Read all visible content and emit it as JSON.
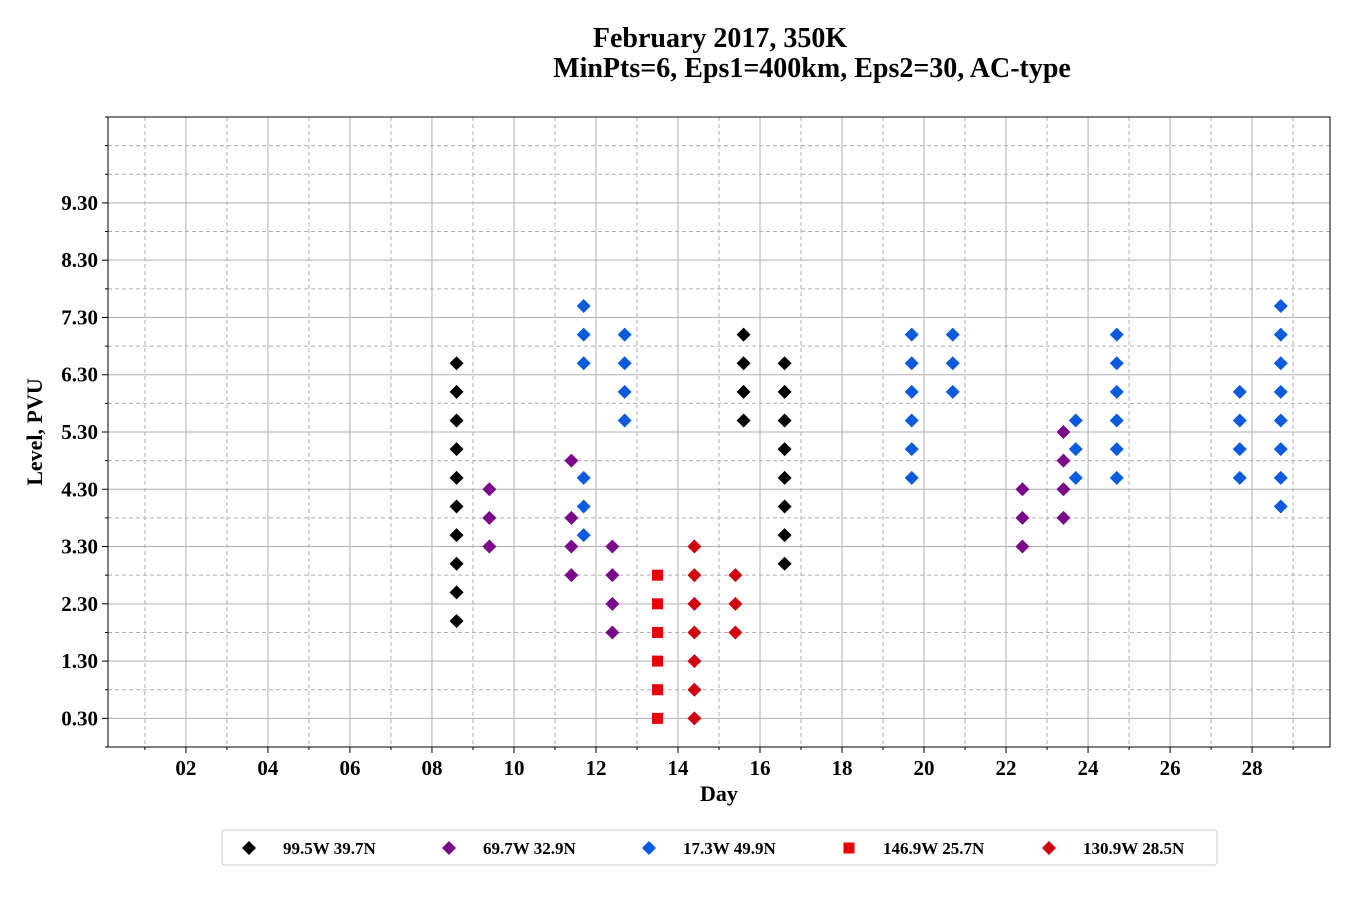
{
  "chart_data": {
    "type": "scatter",
    "title": "February 2017, 350K",
    "subtitle": "MinPts=6, Eps1=400km, Eps2=30, AC-type",
    "xlabel": "Day",
    "ylabel": "Level, PVU",
    "xlim": [
      0.1,
      29.9
    ],
    "ylim": [
      -0.2,
      10.8
    ],
    "x_ticks": [
      2,
      4,
      6,
      8,
      10,
      12,
      14,
      16,
      18,
      20,
      22,
      24,
      26,
      28
    ],
    "x_tick_labels": [
      "02",
      "04",
      "06",
      "08",
      "10",
      "12",
      "14",
      "16",
      "18",
      "20",
      "22",
      "24",
      "26",
      "28"
    ],
    "x_minor_ticks": [
      1,
      3,
      5,
      7,
      9,
      11,
      13,
      15,
      17,
      19,
      21,
      23,
      25,
      27,
      29
    ],
    "y_ticks": [
      0.3,
      1.3,
      2.3,
      3.3,
      4.3,
      5.3,
      6.3,
      7.3,
      8.3,
      9.3
    ],
    "y_tick_labels": [
      "0.30",
      "1.30",
      "2.30",
      "3.30",
      "4.30",
      "5.30",
      "6.30",
      "7.30",
      "8.30",
      "9.30"
    ],
    "y_minor_ticks": [
      -0.2,
      0.8,
      1.8,
      2.8,
      3.8,
      4.8,
      5.8,
      6.8,
      7.8,
      8.8,
      9.8,
      10.3,
      10.8
    ],
    "grid": true,
    "legend_position": "bottom",
    "series": [
      {
        "name": "99.5W 39.7N",
        "color": "#000000",
        "marker": "diamond",
        "points": [
          [
            8.6,
            2.0
          ],
          [
            8.6,
            2.5
          ],
          [
            8.6,
            3.0
          ],
          [
            8.6,
            3.5
          ],
          [
            8.6,
            4.0
          ],
          [
            8.6,
            4.5
          ],
          [
            8.6,
            5.0
          ],
          [
            8.6,
            5.5
          ],
          [
            8.6,
            6.0
          ],
          [
            8.6,
            6.5
          ],
          [
            15.6,
            5.5
          ],
          [
            15.6,
            6.0
          ],
          [
            15.6,
            6.5
          ],
          [
            15.6,
            7.0
          ],
          [
            16.6,
            3.0
          ],
          [
            16.6,
            3.5
          ],
          [
            16.6,
            4.0
          ],
          [
            16.6,
            4.5
          ],
          [
            16.6,
            5.0
          ],
          [
            16.6,
            5.5
          ],
          [
            16.6,
            6.0
          ],
          [
            16.6,
            6.5
          ]
        ]
      },
      {
        "name": "69.7W 32.9N",
        "color": "#7b0a8a",
        "marker": "diamond",
        "points": [
          [
            9.4,
            3.3
          ],
          [
            9.4,
            3.8
          ],
          [
            9.4,
            4.3
          ],
          [
            11.4,
            2.8
          ],
          [
            11.4,
            3.3
          ],
          [
            11.4,
            3.8
          ],
          [
            11.4,
            4.8
          ],
          [
            12.4,
            1.8
          ],
          [
            12.4,
            2.3
          ],
          [
            12.4,
            2.8
          ],
          [
            12.4,
            3.3
          ],
          [
            22.4,
            3.3
          ],
          [
            22.4,
            3.8
          ],
          [
            22.4,
            4.3
          ],
          [
            23.4,
            3.8
          ],
          [
            23.4,
            4.3
          ],
          [
            23.4,
            4.8
          ],
          [
            23.4,
            5.3
          ]
        ]
      },
      {
        "name": "17.3W 49.9N",
        "color": "#0b5bdc",
        "marker": "diamond",
        "points": [
          [
            11.7,
            3.5
          ],
          [
            11.7,
            4.0
          ],
          [
            11.7,
            4.5
          ],
          [
            11.7,
            6.5
          ],
          [
            11.7,
            7.0
          ],
          [
            11.7,
            7.5
          ],
          [
            12.7,
            5.5
          ],
          [
            12.7,
            6.0
          ],
          [
            12.7,
            6.5
          ],
          [
            12.7,
            7.0
          ],
          [
            19.7,
            4.5
          ],
          [
            19.7,
            5.0
          ],
          [
            19.7,
            5.5
          ],
          [
            19.7,
            6.0
          ],
          [
            19.7,
            6.5
          ],
          [
            19.7,
            7.0
          ],
          [
            20.7,
            6.0
          ],
          [
            20.7,
            6.5
          ],
          [
            20.7,
            7.0
          ],
          [
            23.7,
            4.5
          ],
          [
            23.7,
            5.0
          ],
          [
            23.7,
            5.5
          ],
          [
            24.7,
            4.5
          ],
          [
            24.7,
            5.0
          ],
          [
            24.7,
            5.5
          ],
          [
            24.7,
            6.0
          ],
          [
            24.7,
            6.5
          ],
          [
            24.7,
            7.0
          ],
          [
            27.7,
            4.5
          ],
          [
            27.7,
            5.0
          ],
          [
            27.7,
            5.5
          ],
          [
            27.7,
            6.0
          ],
          [
            28.7,
            4.0
          ],
          [
            28.7,
            4.5
          ],
          [
            28.7,
            5.0
          ],
          [
            28.7,
            5.5
          ],
          [
            28.7,
            6.0
          ],
          [
            28.7,
            6.5
          ],
          [
            28.7,
            7.0
          ],
          [
            28.7,
            7.5
          ]
        ]
      },
      {
        "name": "146.9W 25.7N",
        "color": "#e8000b",
        "marker": "square",
        "points": [
          [
            13.5,
            0.3
          ],
          [
            13.5,
            0.8
          ],
          [
            13.5,
            1.3
          ],
          [
            13.5,
            1.8
          ],
          [
            13.5,
            2.3
          ],
          [
            13.5,
            2.8
          ]
        ]
      },
      {
        "name": "130.9W 28.5N",
        "color": "#d00010",
        "marker": "diamond",
        "points": [
          [
            14.4,
            0.3
          ],
          [
            14.4,
            0.8
          ],
          [
            14.4,
            1.3
          ],
          [
            14.4,
            1.8
          ],
          [
            14.4,
            2.3
          ],
          [
            14.4,
            2.8
          ],
          [
            14.4,
            3.3
          ],
          [
            15.4,
            1.8
          ],
          [
            15.4,
            2.3
          ],
          [
            15.4,
            2.8
          ]
        ]
      }
    ]
  }
}
